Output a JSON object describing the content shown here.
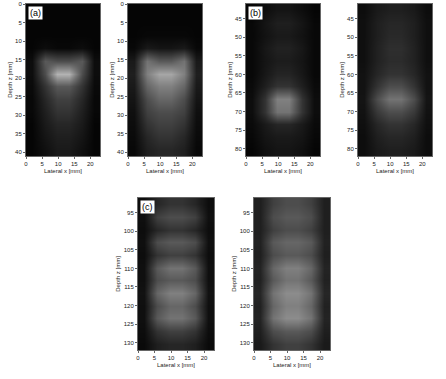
{
  "chart_data": [
    {
      "type": "heatmap",
      "label": "(a)",
      "xlabel": "Lateral x [mm]",
      "ylabel": "Depth z [mm]",
      "xlim": [
        0,
        23
      ],
      "xticks": [
        0,
        5,
        10,
        15,
        20
      ],
      "ylim": [
        0,
        41
      ],
      "yticks": [
        0,
        5,
        10,
        15,
        20,
        25,
        30,
        35,
        40
      ],
      "zlim": [
        0,
        1
      ],
      "cells": [
        [
          0.02,
          0.02,
          0.02,
          0.02,
          0.02,
          0.02
        ],
        [
          0.02,
          0.02,
          0.02,
          0.02,
          0.02,
          0.02
        ],
        [
          0.02,
          0.02,
          0.02,
          0.02,
          0.02,
          0.02
        ],
        [
          0.02,
          0.05,
          0.03,
          0.03,
          0.05,
          0.02
        ],
        [
          0.05,
          0.35,
          0.3,
          0.3,
          0.35,
          0.05
        ],
        [
          0.05,
          0.3,
          0.7,
          0.7,
          0.3,
          0.05
        ],
        [
          0.04,
          0.2,
          0.35,
          0.35,
          0.2,
          0.04
        ],
        [
          0.03,
          0.15,
          0.25,
          0.25,
          0.15,
          0.03
        ],
        [
          0.03,
          0.12,
          0.2,
          0.2,
          0.12,
          0.03
        ],
        [
          0.02,
          0.1,
          0.15,
          0.15,
          0.1,
          0.02
        ],
        [
          0.02,
          0.08,
          0.12,
          0.12,
          0.08,
          0.02
        ],
        [
          0.02,
          0.06,
          0.1,
          0.1,
          0.06,
          0.02
        ]
      ]
    },
    {
      "type": "heatmap",
      "xlabel": "Lateral x [mm]",
      "ylabel": "Depth z [mm]",
      "xlim": [
        0,
        23
      ],
      "xticks": [
        0,
        5,
        10,
        15,
        20
      ],
      "ylim": [
        0,
        41
      ],
      "yticks": [
        0,
        5,
        10,
        15,
        20,
        25,
        30,
        35,
        40
      ],
      "zlim": [
        0,
        1
      ],
      "cells": [
        [
          0.02,
          0.02,
          0.02,
          0.02,
          0.02,
          0.02
        ],
        [
          0.02,
          0.02,
          0.02,
          0.02,
          0.02,
          0.02
        ],
        [
          0.02,
          0.03,
          0.03,
          0.03,
          0.03,
          0.02
        ],
        [
          0.03,
          0.1,
          0.08,
          0.08,
          0.1,
          0.03
        ],
        [
          0.1,
          0.45,
          0.35,
          0.35,
          0.45,
          0.1
        ],
        [
          0.12,
          0.5,
          0.65,
          0.65,
          0.5,
          0.12
        ],
        [
          0.1,
          0.4,
          0.5,
          0.5,
          0.4,
          0.1
        ],
        [
          0.08,
          0.3,
          0.4,
          0.4,
          0.3,
          0.08
        ],
        [
          0.06,
          0.25,
          0.3,
          0.3,
          0.25,
          0.06
        ],
        [
          0.05,
          0.2,
          0.25,
          0.25,
          0.2,
          0.05
        ],
        [
          0.04,
          0.15,
          0.2,
          0.2,
          0.15,
          0.04
        ],
        [
          0.03,
          0.12,
          0.15,
          0.15,
          0.12,
          0.03
        ]
      ]
    },
    {
      "type": "heatmap",
      "label": "(b)",
      "xlabel": "Lateral x [mm]",
      "ylabel": "Depth z [mm]",
      "xlim": [
        0,
        23
      ],
      "xticks": [
        0,
        5,
        10,
        15,
        20
      ],
      "ylim": [
        41,
        82
      ],
      "yticks": [
        45,
        50,
        55,
        60,
        65,
        70,
        75,
        80
      ],
      "zlim": [
        0,
        1
      ],
      "cells": [
        [
          0.02,
          0.05,
          0.08,
          0.08,
          0.05,
          0.02
        ],
        [
          0.03,
          0.08,
          0.12,
          0.12,
          0.08,
          0.03
        ],
        [
          0.03,
          0.07,
          0.1,
          0.1,
          0.07,
          0.03
        ],
        [
          0.03,
          0.09,
          0.13,
          0.13,
          0.09,
          0.03
        ],
        [
          0.03,
          0.08,
          0.11,
          0.11,
          0.08,
          0.03
        ],
        [
          0.03,
          0.09,
          0.14,
          0.14,
          0.09,
          0.03
        ],
        [
          0.04,
          0.12,
          0.2,
          0.2,
          0.12,
          0.04
        ],
        [
          0.05,
          0.2,
          0.5,
          0.5,
          0.2,
          0.05
        ],
        [
          0.05,
          0.2,
          0.45,
          0.45,
          0.2,
          0.05
        ],
        [
          0.04,
          0.1,
          0.15,
          0.15,
          0.1,
          0.04
        ],
        [
          0.03,
          0.08,
          0.1,
          0.1,
          0.08,
          0.03
        ],
        [
          0.02,
          0.06,
          0.08,
          0.08,
          0.06,
          0.02
        ]
      ]
    },
    {
      "type": "heatmap",
      "xlabel": "Lateral x [mm]",
      "ylabel": "Depth z [mm]",
      "xlim": [
        0,
        23
      ],
      "xticks": [
        0,
        5,
        10,
        15,
        20
      ],
      "ylim": [
        41,
        82
      ],
      "yticks": [
        45,
        50,
        55,
        60,
        65,
        70,
        75,
        80
      ],
      "zlim": [
        0,
        1
      ],
      "cells": [
        [
          0.05,
          0.1,
          0.12,
          0.12,
          0.1,
          0.05
        ],
        [
          0.06,
          0.12,
          0.15,
          0.15,
          0.12,
          0.06
        ],
        [
          0.06,
          0.12,
          0.16,
          0.16,
          0.12,
          0.06
        ],
        [
          0.06,
          0.13,
          0.18,
          0.18,
          0.13,
          0.06
        ],
        [
          0.06,
          0.13,
          0.17,
          0.17,
          0.13,
          0.06
        ],
        [
          0.07,
          0.15,
          0.2,
          0.2,
          0.15,
          0.07
        ],
        [
          0.07,
          0.2,
          0.3,
          0.3,
          0.2,
          0.07
        ],
        [
          0.08,
          0.3,
          0.45,
          0.45,
          0.3,
          0.08
        ],
        [
          0.07,
          0.22,
          0.3,
          0.3,
          0.22,
          0.07
        ],
        [
          0.06,
          0.15,
          0.2,
          0.2,
          0.15,
          0.06
        ],
        [
          0.05,
          0.12,
          0.15,
          0.15,
          0.12,
          0.05
        ],
        [
          0.05,
          0.1,
          0.12,
          0.12,
          0.1,
          0.05
        ]
      ]
    },
    {
      "type": "heatmap",
      "label": "(c)",
      "xlabel": "Lateral x [mm]",
      "ylabel": "Depth z [mm]",
      "xlim": [
        0,
        23
      ],
      "xticks": [
        0,
        5,
        10,
        15,
        20
      ],
      "ylim": [
        91,
        132
      ],
      "yticks": [
        95,
        100,
        105,
        110,
        115,
        120,
        125,
        130
      ],
      "zlim": [
        0,
        1
      ],
      "cells": [
        [
          0.05,
          0.15,
          0.2,
          0.2,
          0.15,
          0.05
        ],
        [
          0.06,
          0.25,
          0.3,
          0.3,
          0.25,
          0.06
        ],
        [
          0.05,
          0.15,
          0.2,
          0.2,
          0.15,
          0.05
        ],
        [
          0.06,
          0.3,
          0.35,
          0.35,
          0.3,
          0.06
        ],
        [
          0.05,
          0.2,
          0.25,
          0.25,
          0.2,
          0.05
        ],
        [
          0.06,
          0.35,
          0.45,
          0.45,
          0.35,
          0.06
        ],
        [
          0.06,
          0.3,
          0.35,
          0.35,
          0.3,
          0.06
        ],
        [
          0.07,
          0.4,
          0.5,
          0.5,
          0.4,
          0.07
        ],
        [
          0.06,
          0.3,
          0.4,
          0.4,
          0.3,
          0.06
        ],
        [
          0.06,
          0.35,
          0.45,
          0.45,
          0.35,
          0.06
        ],
        [
          0.05,
          0.2,
          0.25,
          0.25,
          0.2,
          0.05
        ],
        [
          0.04,
          0.12,
          0.15,
          0.15,
          0.12,
          0.04
        ]
      ]
    },
    {
      "type": "heatmap",
      "xlabel": "Lateral x [mm]",
      "ylabel": "Depth z [mm]",
      "xlim": [
        0,
        23
      ],
      "xticks": [
        0,
        5,
        10,
        15,
        20
      ],
      "ylim": [
        91,
        132
      ],
      "yticks": [
        95,
        100,
        105,
        110,
        115,
        120,
        125,
        130
      ],
      "zlim": [
        0,
        1
      ],
      "cells": [
        [
          0.12,
          0.25,
          0.3,
          0.3,
          0.25,
          0.12
        ],
        [
          0.12,
          0.3,
          0.35,
          0.35,
          0.3,
          0.12
        ],
        [
          0.12,
          0.25,
          0.3,
          0.3,
          0.25,
          0.12
        ],
        [
          0.13,
          0.35,
          0.4,
          0.4,
          0.35,
          0.13
        ],
        [
          0.12,
          0.3,
          0.35,
          0.35,
          0.3,
          0.12
        ],
        [
          0.14,
          0.4,
          0.5,
          0.5,
          0.4,
          0.14
        ],
        [
          0.13,
          0.35,
          0.45,
          0.45,
          0.35,
          0.13
        ],
        [
          0.15,
          0.45,
          0.55,
          0.55,
          0.45,
          0.15
        ],
        [
          0.13,
          0.4,
          0.5,
          0.5,
          0.4,
          0.13
        ],
        [
          0.14,
          0.45,
          0.55,
          0.55,
          0.45,
          0.14
        ],
        [
          0.12,
          0.3,
          0.35,
          0.35,
          0.3,
          0.12
        ],
        [
          0.1,
          0.2,
          0.25,
          0.25,
          0.2,
          0.1
        ]
      ]
    }
  ]
}
